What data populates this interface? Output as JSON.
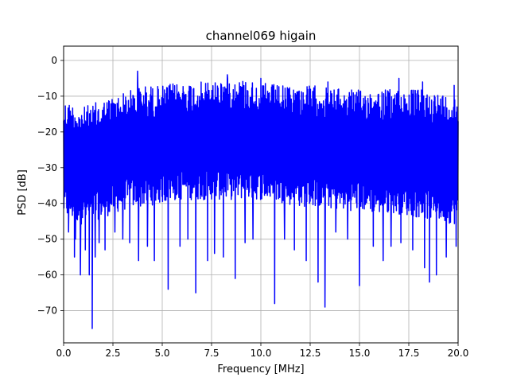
{
  "chart_data": {
    "type": "line",
    "title": "channel069 higain",
    "xlabel": "Frequency [MHz]",
    "ylabel": "PSD [dB]",
    "xlim": [
      0,
      20
    ],
    "ylim": [
      -79,
      4
    ],
    "xticks": [
      0,
      2.5,
      5,
      7.5,
      10,
      12.5,
      15,
      17.5,
      20
    ],
    "xtick_labels": [
      "0.0",
      "2.5",
      "5.0",
      "7.5",
      "10.0",
      "12.5",
      "15.0",
      "17.5",
      "20.0"
    ],
    "yticks": [
      0,
      -10,
      -20,
      -30,
      -40,
      -50,
      -60,
      -70
    ],
    "ytick_labels": [
      "0",
      "−10",
      "−20",
      "−30",
      "−40",
      "−50",
      "−60",
      "−70"
    ],
    "grid": true,
    "series": [
      {
        "color": "#0000ff",
        "envelope": {
          "x": [
            0,
            1,
            2,
            3,
            4,
            5,
            6,
            7,
            8,
            9,
            10,
            11,
            12,
            13,
            14,
            15,
            16,
            17,
            18,
            19,
            20
          ],
          "upper": [
            -11,
            -13,
            -11,
            -9,
            -7,
            -7,
            -6,
            -6,
            -5,
            -5,
            -6,
            -7,
            -7,
            -7,
            -8,
            -8,
            -8,
            -8,
            -8,
            -9,
            -10
          ],
          "lower": [
            -44,
            -46,
            -44,
            -42,
            -41,
            -40,
            -39,
            -39,
            -39,
            -39,
            -39,
            -40,
            -41,
            -41,
            -42,
            -42,
            -43,
            -43,
            -44,
            -45,
            -46
          ]
        },
        "peaks": [
          [
            3.75,
            -3
          ],
          [
            8.3,
            -4
          ],
          [
            10.0,
            -5
          ],
          [
            13.4,
            -6
          ],
          [
            17.0,
            -5
          ],
          [
            18.2,
            -6
          ],
          [
            19.8,
            -7
          ]
        ],
        "dips": [
          [
            0.25,
            -48
          ],
          [
            0.55,
            -55
          ],
          [
            0.6,
            -50
          ],
          [
            0.85,
            -60
          ],
          [
            1.1,
            -53
          ],
          [
            1.3,
            -60
          ],
          [
            1.45,
            -75
          ],
          [
            1.6,
            -55
          ],
          [
            1.8,
            -51
          ],
          [
            2.1,
            -53
          ],
          [
            2.6,
            -48
          ],
          [
            3.0,
            -50
          ],
          [
            3.35,
            -51
          ],
          [
            3.8,
            -56
          ],
          [
            4.25,
            -52
          ],
          [
            4.6,
            -56
          ],
          [
            5.3,
            -64
          ],
          [
            5.9,
            -52
          ],
          [
            6.3,
            -50
          ],
          [
            6.7,
            -65
          ],
          [
            7.3,
            -56
          ],
          [
            7.65,
            -54
          ],
          [
            8.1,
            -55
          ],
          [
            8.7,
            -61
          ],
          [
            9.2,
            -51
          ],
          [
            9.6,
            -50
          ],
          [
            10.7,
            -68
          ],
          [
            11.2,
            -50
          ],
          [
            11.7,
            -53
          ],
          [
            12.3,
            -56
          ],
          [
            12.9,
            -62
          ],
          [
            13.25,
            -69
          ],
          [
            13.8,
            -48
          ],
          [
            14.4,
            -50
          ],
          [
            15.0,
            -63
          ],
          [
            15.7,
            -52
          ],
          [
            16.2,
            -56
          ],
          [
            16.6,
            -52
          ],
          [
            17.1,
            -51
          ],
          [
            17.7,
            -53
          ],
          [
            18.3,
            -58
          ],
          [
            18.55,
            -62
          ],
          [
            18.9,
            -60
          ],
          [
            19.4,
            -55
          ],
          [
            19.9,
            -52
          ]
        ],
        "sample_count": 1400
      }
    ]
  }
}
